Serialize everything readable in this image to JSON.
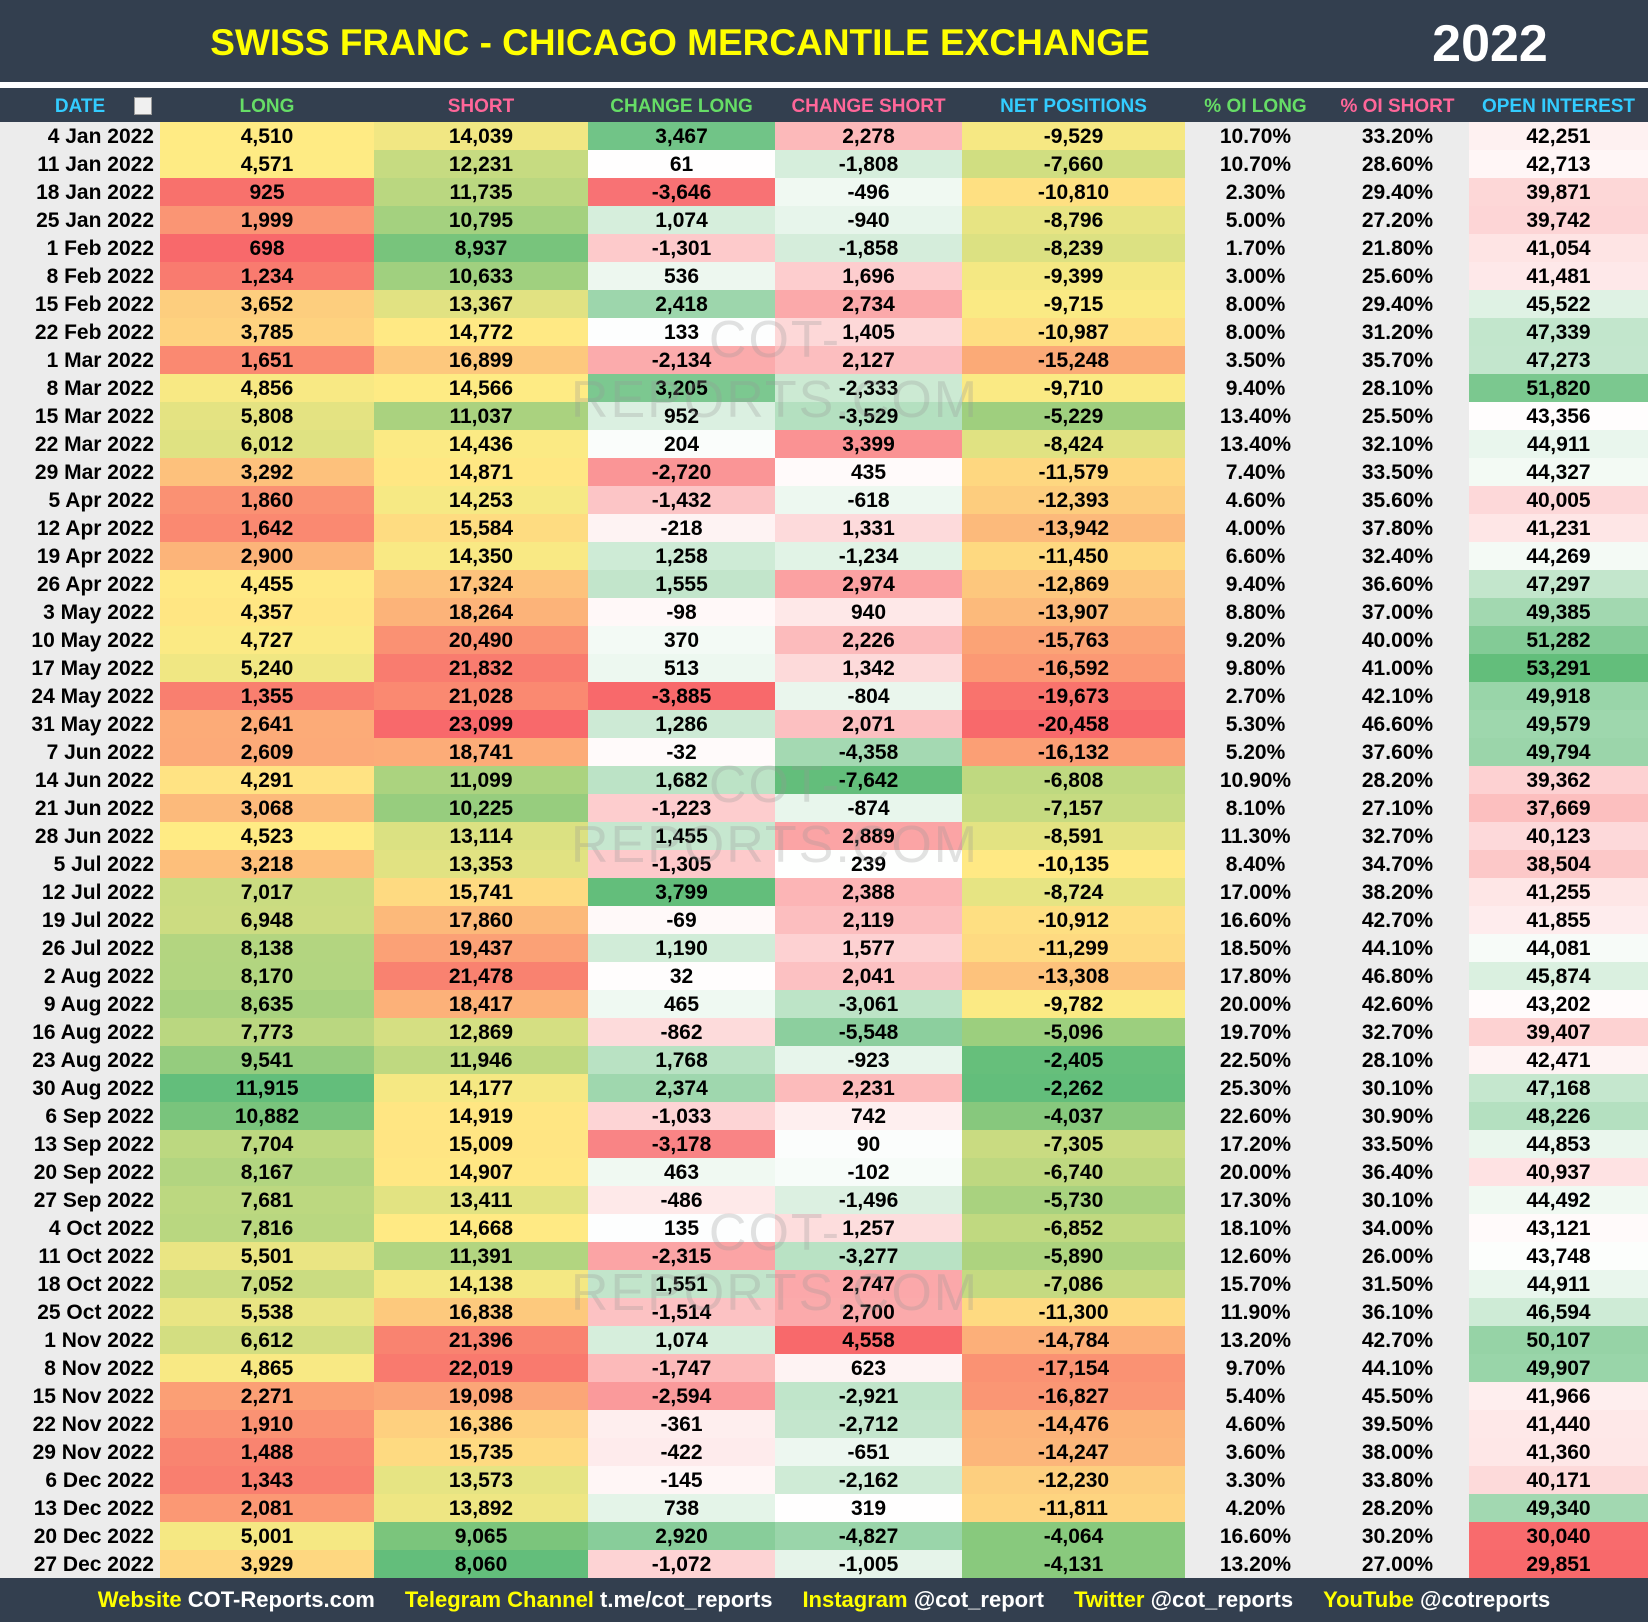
{
  "header": {
    "title": "SWISS FRANC - CHICAGO MERCANTILE EXCHANGE",
    "year": "2022"
  },
  "watermark": "COT-REPORTS.COM",
  "table": {
    "columns": [
      "DATE",
      "LONG",
      "SHORT",
      "CHANGE LONG",
      "CHANGE SHORT",
      "NET POSITIONS",
      "% OI LONG",
      "% OI SHORT",
      "OPEN INTEREST"
    ],
    "rows": [
      [
        "4 Jan 2022",
        "4,510",
        "14,039",
        "3,467",
        "2,278",
        "-9,529",
        "10.70%",
        "33.20%",
        "42,251"
      ],
      [
        "11 Jan 2022",
        "4,571",
        "12,231",
        "61",
        "-1,808",
        "-7,660",
        "10.70%",
        "28.60%",
        "42,713"
      ],
      [
        "18 Jan 2022",
        "925",
        "11,735",
        "-3,646",
        "-496",
        "-10,810",
        "2.30%",
        "29.40%",
        "39,871"
      ],
      [
        "25 Jan 2022",
        "1,999",
        "10,795",
        "1,074",
        "-940",
        "-8,796",
        "5.00%",
        "27.20%",
        "39,742"
      ],
      [
        "1 Feb 2022",
        "698",
        "8,937",
        "-1,301",
        "-1,858",
        "-8,239",
        "1.70%",
        "21.80%",
        "41,054"
      ],
      [
        "8 Feb 2022",
        "1,234",
        "10,633",
        "536",
        "1,696",
        "-9,399",
        "3.00%",
        "25.60%",
        "41,481"
      ],
      [
        "15 Feb 2022",
        "3,652",
        "13,367",
        "2,418",
        "2,734",
        "-9,715",
        "8.00%",
        "29.40%",
        "45,522"
      ],
      [
        "22 Feb 2022",
        "3,785",
        "14,772",
        "133",
        "1,405",
        "-10,987",
        "8.00%",
        "31.20%",
        "47,339"
      ],
      [
        "1 Mar 2022",
        "1,651",
        "16,899",
        "-2,134",
        "2,127",
        "-15,248",
        "3.50%",
        "35.70%",
        "47,273"
      ],
      [
        "8 Mar 2022",
        "4,856",
        "14,566",
        "3,205",
        "-2,333",
        "-9,710",
        "9.40%",
        "28.10%",
        "51,820"
      ],
      [
        "15 Mar 2022",
        "5,808",
        "11,037",
        "952",
        "-3,529",
        "-5,229",
        "13.40%",
        "25.50%",
        "43,356"
      ],
      [
        "22 Mar 2022",
        "6,012",
        "14,436",
        "204",
        "3,399",
        "-8,424",
        "13.40%",
        "32.10%",
        "44,911"
      ],
      [
        "29 Mar 2022",
        "3,292",
        "14,871",
        "-2,720",
        "435",
        "-11,579",
        "7.40%",
        "33.50%",
        "44,327"
      ],
      [
        "5 Apr 2022",
        "1,860",
        "14,253",
        "-1,432",
        "-618",
        "-12,393",
        "4.60%",
        "35.60%",
        "40,005"
      ],
      [
        "12 Apr 2022",
        "1,642",
        "15,584",
        "-218",
        "1,331",
        "-13,942",
        "4.00%",
        "37.80%",
        "41,231"
      ],
      [
        "19 Apr 2022",
        "2,900",
        "14,350",
        "1,258",
        "-1,234",
        "-11,450",
        "6.60%",
        "32.40%",
        "44,269"
      ],
      [
        "26 Apr 2022",
        "4,455",
        "17,324",
        "1,555",
        "2,974",
        "-12,869",
        "9.40%",
        "36.60%",
        "47,297"
      ],
      [
        "3 May 2022",
        "4,357",
        "18,264",
        "-98",
        "940",
        "-13,907",
        "8.80%",
        "37.00%",
        "49,385"
      ],
      [
        "10 May 2022",
        "4,727",
        "20,490",
        "370",
        "2,226",
        "-15,763",
        "9.20%",
        "40.00%",
        "51,282"
      ],
      [
        "17 May 2022",
        "5,240",
        "21,832",
        "513",
        "1,342",
        "-16,592",
        "9.80%",
        "41.00%",
        "53,291"
      ],
      [
        "24 May 2022",
        "1,355",
        "21,028",
        "-3,885",
        "-804",
        "-19,673",
        "2.70%",
        "42.10%",
        "49,918"
      ],
      [
        "31 May 2022",
        "2,641",
        "23,099",
        "1,286",
        "2,071",
        "-20,458",
        "5.30%",
        "46.60%",
        "49,579"
      ],
      [
        "7 Jun 2022",
        "2,609",
        "18,741",
        "-32",
        "-4,358",
        "-16,132",
        "5.20%",
        "37.60%",
        "49,794"
      ],
      [
        "14 Jun 2022",
        "4,291",
        "11,099",
        "1,682",
        "-7,642",
        "-6,808",
        "10.90%",
        "28.20%",
        "39,362"
      ],
      [
        "21 Jun 2022",
        "3,068",
        "10,225",
        "-1,223",
        "-874",
        "-7,157",
        "8.10%",
        "27.10%",
        "37,669"
      ],
      [
        "28 Jun 2022",
        "4,523",
        "13,114",
        "1,455",
        "2,889",
        "-8,591",
        "11.30%",
        "32.70%",
        "40,123"
      ],
      [
        "5 Jul 2022",
        "3,218",
        "13,353",
        "-1,305",
        "239",
        "-10,135",
        "8.40%",
        "34.70%",
        "38,504"
      ],
      [
        "12 Jul 2022",
        "7,017",
        "15,741",
        "3,799",
        "2,388",
        "-8,724",
        "17.00%",
        "38.20%",
        "41,255"
      ],
      [
        "19 Jul 2022",
        "6,948",
        "17,860",
        "-69",
        "2,119",
        "-10,912",
        "16.60%",
        "42.70%",
        "41,855"
      ],
      [
        "26 Jul 2022",
        "8,138",
        "19,437",
        "1,190",
        "1,577",
        "-11,299",
        "18.50%",
        "44.10%",
        "44,081"
      ],
      [
        "2 Aug 2022",
        "8,170",
        "21,478",
        "32",
        "2,041",
        "-13,308",
        "17.80%",
        "46.80%",
        "45,874"
      ],
      [
        "9 Aug 2022",
        "8,635",
        "18,417",
        "465",
        "-3,061",
        "-9,782",
        "20.00%",
        "42.60%",
        "43,202"
      ],
      [
        "16 Aug 2022",
        "7,773",
        "12,869",
        "-862",
        "-5,548",
        "-5,096",
        "19.70%",
        "32.70%",
        "39,407"
      ],
      [
        "23 Aug 2022",
        "9,541",
        "11,946",
        "1,768",
        "-923",
        "-2,405",
        "22.50%",
        "28.10%",
        "42,471"
      ],
      [
        "30 Aug 2022",
        "11,915",
        "14,177",
        "2,374",
        "2,231",
        "-2,262",
        "25.30%",
        "30.10%",
        "47,168"
      ],
      [
        "6 Sep 2022",
        "10,882",
        "14,919",
        "-1,033",
        "742",
        "-4,037",
        "22.60%",
        "30.90%",
        "48,226"
      ],
      [
        "13 Sep 2022",
        "7,704",
        "15,009",
        "-3,178",
        "90",
        "-7,305",
        "17.20%",
        "33.50%",
        "44,853"
      ],
      [
        "20 Sep 2022",
        "8,167",
        "14,907",
        "463",
        "-102",
        "-6,740",
        "20.00%",
        "36.40%",
        "40,937"
      ],
      [
        "27 Sep 2022",
        "7,681",
        "13,411",
        "-486",
        "-1,496",
        "-5,730",
        "17.30%",
        "30.10%",
        "44,492"
      ],
      [
        "4 Oct 2022",
        "7,816",
        "14,668",
        "135",
        "1,257",
        "-6,852",
        "18.10%",
        "34.00%",
        "43,121"
      ],
      [
        "11 Oct 2022",
        "5,501",
        "11,391",
        "-2,315",
        "-3,277",
        "-5,890",
        "12.60%",
        "26.00%",
        "43,748"
      ],
      [
        "18 Oct 2022",
        "7,052",
        "14,138",
        "1,551",
        "2,747",
        "-7,086",
        "15.70%",
        "31.50%",
        "44,911"
      ],
      [
        "25 Oct 2022",
        "5,538",
        "16,838",
        "-1,514",
        "2,700",
        "-11,300",
        "11.90%",
        "36.10%",
        "46,594"
      ],
      [
        "1 Nov 2022",
        "6,612",
        "21,396",
        "1,074",
        "4,558",
        "-14,784",
        "13.20%",
        "42.70%",
        "50,107"
      ],
      [
        "8 Nov 2022",
        "4,865",
        "22,019",
        "-1,747",
        "623",
        "-17,154",
        "9.70%",
        "44.10%",
        "49,907"
      ],
      [
        "15 Nov 2022",
        "2,271",
        "19,098",
        "-2,594",
        "-2,921",
        "-16,827",
        "5.40%",
        "45.50%",
        "41,966"
      ],
      [
        "22 Nov 2022",
        "1,910",
        "16,386",
        "-361",
        "-2,712",
        "-14,476",
        "4.60%",
        "39.50%",
        "41,440"
      ],
      [
        "29 Nov 2022",
        "1,488",
        "15,735",
        "-422",
        "-651",
        "-14,247",
        "3.60%",
        "38.00%",
        "41,360"
      ],
      [
        "6 Dec 2022",
        "1,343",
        "13,573",
        "-145",
        "-2,162",
        "-12,230",
        "3.30%",
        "33.80%",
        "40,171"
      ],
      [
        "13 Dec 2022",
        "2,081",
        "13,892",
        "738",
        "319",
        "-11,811",
        "4.20%",
        "28.20%",
        "49,340"
      ],
      [
        "20 Dec 2022",
        "5,001",
        "9,065",
        "2,920",
        "-4,827",
        "-4,064",
        "16.60%",
        "30.20%",
        "30,040"
      ],
      [
        "27 Dec 2022",
        "3,929",
        "8,060",
        "-1,072",
        "-1,005",
        "-4,131",
        "13.20%",
        "27.00%",
        "29,851"
      ]
    ]
  },
  "footer": [
    {
      "label": "Website",
      "value": "COT-Reports.com"
    },
    {
      "label": "Telegram Channel",
      "value": "t.me/cot_reports"
    },
    {
      "label": "Instagram",
      "value": "@cot_report"
    },
    {
      "label": "Twitter",
      "value": "@cot_reports"
    },
    {
      "label": "YouTube",
      "value": "@cotreports"
    }
  ]
}
